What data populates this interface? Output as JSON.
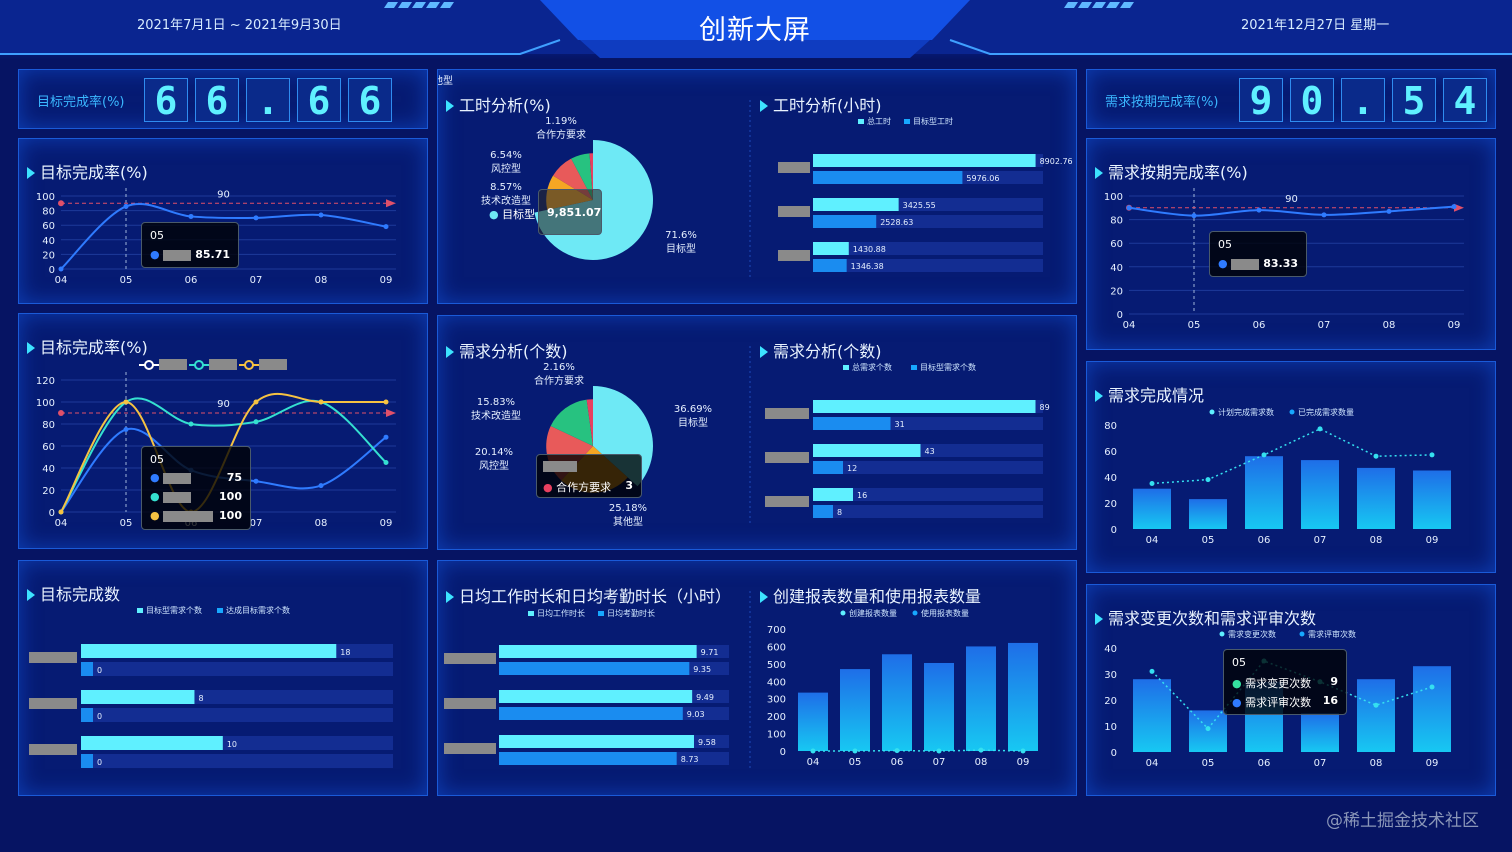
{
  "header": {
    "date_range": "2021年7月1日 ~ 2021年9月30日",
    "title": "创新大屏",
    "today": "2021年12月27日 星期一"
  },
  "kpi_left": {
    "label": "目标完成率(%)",
    "digits": [
      "6",
      "6",
      ".",
      "6",
      "6"
    ]
  },
  "kpi_right": {
    "label": "需求按期完成率(%)",
    "digits": [
      "9",
      "0",
      ".",
      "5",
      "4"
    ]
  },
  "panels": {
    "target_rate_1": "目标完成率(%)",
    "target_rate_2": "目标完成率(%)",
    "target_count": "目标完成数",
    "work_hours_pie": "工时分析(%)",
    "work_hours_bar": "工时分析(小时)",
    "demand_pie": "需求分析(个数)",
    "demand_bar": "需求分析(个数)",
    "daily_hours": "日均工作时长和日均考勤时长（小时）",
    "reports": "创建报表数量和使用报表数量",
    "demand_ontime": "需求按期完成率(%)",
    "demand_completion": "需求完成情况",
    "demand_change": "需求变更次数和需求评审次数"
  },
  "tooltips": {
    "t1": {
      "header": "05",
      "value": "85.71"
    },
    "t2": {
      "header": "05",
      "v1": "75",
      "v2": "100",
      "v3": "100"
    },
    "t3": {
      "header": "05",
      "value": "83.33"
    },
    "t4": {
      "label": "合作方要求",
      "value": "3"
    },
    "t5": {
      "header": "05",
      "l1": "需求变更次数",
      "v1": "9",
      "l2": "需求评审次数",
      "v2": "16"
    },
    "t6": {
      "label": "目标型",
      "value": "9,851.07"
    }
  },
  "watermark": "@稀土掘金技术社区",
  "chart_data": [
    {
      "id": "target_rate_1",
      "type": "line",
      "categories": [
        "04",
        "05",
        "06",
        "07",
        "08",
        "09"
      ],
      "ylim": [
        0,
        100
      ],
      "yticks": [
        0,
        20,
        40,
        60,
        80,
        100
      ],
      "markline": {
        "value": 90,
        "label": "90"
      },
      "series": [
        {
          "values": [
            0,
            85.71,
            72,
            70,
            74,
            58
          ],
          "color": "#2f7bff"
        }
      ]
    },
    {
      "id": "target_rate_2",
      "type": "line",
      "categories": [
        "04",
        "05",
        "06",
        "07",
        "08",
        "09"
      ],
      "ylim": [
        0,
        120
      ],
      "yticks": [
        0,
        20,
        40,
        60,
        80,
        100,
        120
      ],
      "markline": {
        "value": 90,
        "label": "90"
      },
      "series": [
        {
          "values": [
            0,
            75,
            38,
            28,
            24,
            68
          ],
          "color": "#2f7bff"
        },
        {
          "values": [
            0,
            100,
            80,
            82,
            100,
            45
          ],
          "color": "#35e0d0"
        },
        {
          "values": [
            0,
            100,
            0,
            100,
            100,
            100
          ],
          "color": "#f5c242"
        }
      ]
    },
    {
      "id": "target_count",
      "type": "bar",
      "orientation": "horizontal",
      "legend": [
        "目标型需求个数",
        "达成目标需求个数"
      ],
      "groups": [
        {
          "a": 18,
          "b": 0
        },
        {
          "a": 8,
          "b": 0
        },
        {
          "a": 10,
          "b": 0
        }
      ],
      "max": 22
    },
    {
      "id": "work_hours_pie",
      "type": "pie",
      "slices": [
        {
          "label": "目标型",
          "pct": "71.6%",
          "value": 71.6,
          "color": "#6ee9f5"
        },
        {
          "label": "其他型",
          "pct": "",
          "value": 12.07,
          "color": "#f5a623"
        },
        {
          "label": "技术改造型",
          "pct": "8.57%",
          "value": 8.57,
          "color": "#e85a5a"
        },
        {
          "label": "风控型",
          "pct": "6.54%",
          "value": 6.54,
          "color": "#27c280"
        },
        {
          "label": "合作方要求",
          "pct": "1.19%",
          "value": 1.19,
          "color": "#e84060"
        }
      ]
    },
    {
      "id": "work_hours_bar",
      "type": "bar",
      "orientation": "horizontal",
      "legend": [
        "总工时",
        "目标型工时"
      ],
      "groups": [
        {
          "a": 8902.76,
          "b": 5976.06
        },
        {
          "a": 3425.55,
          "b": 2528.63
        },
        {
          "a": 1430.88,
          "b": 1346.38
        }
      ],
      "max": 9200
    },
    {
      "id": "demand_pie",
      "type": "pie",
      "slices": [
        {
          "label": "目标型",
          "pct": "36.69%",
          "value": 36.69,
          "color": "#6ee9f5"
        },
        {
          "label": "其他型",
          "pct": "25.18%",
          "value": 25.18,
          "color": "#f5a623"
        },
        {
          "label": "风控型",
          "pct": "20.14%",
          "value": 20.14,
          "color": "#e85a5a"
        },
        {
          "label": "技术改造型",
          "pct": "15.83%",
          "value": 15.83,
          "color": "#27c280"
        },
        {
          "label": "合作方要求",
          "pct": "2.16%",
          "value": 2.16,
          "color": "#e84060"
        }
      ]
    },
    {
      "id": "demand_bar",
      "type": "bar",
      "orientation": "horizontal",
      "legend": [
        "总需求个数",
        "目标型需求个数"
      ],
      "groups": [
        {
          "a": 89,
          "b": 31
        },
        {
          "a": 43,
          "b": 12
        },
        {
          "a": 16,
          "b": 8
        }
      ],
      "max": 92
    },
    {
      "id": "daily_hours",
      "type": "bar",
      "orientation": "horizontal",
      "legend": [
        "日均工作时长",
        "日均考勤时长"
      ],
      "groups": [
        {
          "a": 9.71,
          "b": 9.35
        },
        {
          "a": 9.49,
          "b": 9.03
        },
        {
          "a": 9.58,
          "b": 8.73
        }
      ],
      "max": 11.3
    },
    {
      "id": "reports",
      "type": "bar",
      "categories": [
        "04",
        "05",
        "06",
        "07",
        "08",
        "09"
      ],
      "ylim": [
        0,
        700
      ],
      "yticks": [
        0,
        100,
        200,
        300,
        400,
        500,
        600,
        700
      ],
      "legend": [
        "创建报表数量",
        "使用报表数量"
      ],
      "bars": [
        335,
        470,
        555,
        505,
        600,
        620
      ],
      "line": [
        0,
        0,
        2,
        0,
        5,
        0
      ]
    },
    {
      "id": "demand_ontime",
      "type": "line",
      "categories": [
        "04",
        "05",
        "06",
        "07",
        "08",
        "09"
      ],
      "ylim": [
        0,
        100
      ],
      "yticks": [
        0,
        20,
        40,
        60,
        80,
        100
      ],
      "markline": {
        "value": 90,
        "label": "90"
      },
      "series": [
        {
          "values": [
            90,
            83.33,
            88,
            84,
            87,
            91
          ],
          "color": "#2f7bff"
        }
      ]
    },
    {
      "id": "demand_completion",
      "type": "bar",
      "categories": [
        "04",
        "05",
        "06",
        "07",
        "08",
        "09"
      ],
      "ylim": [
        0,
        80
      ],
      "yticks": [
        0,
        20,
        40,
        60,
        80
      ],
      "legend": [
        "计划完成需求数",
        "已完成需求数量"
      ],
      "bars": [
        31,
        23,
        56,
        53,
        47,
        45
      ],
      "line": [
        35,
        38,
        57,
        77,
        56,
        57
      ]
    },
    {
      "id": "demand_change",
      "type": "bar",
      "categories": [
        "04",
        "05",
        "06",
        "07",
        "08",
        "09"
      ],
      "ylim": [
        0,
        40
      ],
      "yticks": [
        0,
        10,
        20,
        30,
        40
      ],
      "legend": [
        "需求变更次数",
        "需求评审次数"
      ],
      "bars": [
        28,
        16,
        27,
        15,
        28,
        33
      ],
      "line": [
        31,
        9,
        35,
        27,
        18,
        25
      ]
    }
  ]
}
